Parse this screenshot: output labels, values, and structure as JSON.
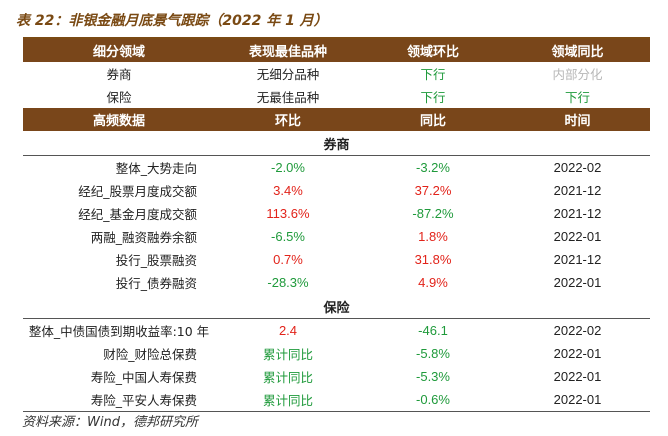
{
  "caption": "表 22：非银金融月底景气跟踪（2022 年 1 月）",
  "summary": {
    "headers": [
      "细分领域",
      "表现最佳品种",
      "领域环比",
      "领域同比"
    ],
    "rows": [
      {
        "domain": "券商",
        "best": "无细分品种",
        "mom": "下行",
        "yoy": "内部分化"
      },
      {
        "domain": "保险",
        "best": "无最佳品种",
        "mom": "下行",
        "yoy": "下行"
      }
    ]
  },
  "detail": {
    "headers": [
      "高频数据",
      "环比",
      "同比",
      "时间"
    ],
    "sections": [
      {
        "title": "券商",
        "rows": [
          {
            "name": "整体_大势走向",
            "mom": "-2.0%",
            "yoy": "-3.2%",
            "date": "2022-02"
          },
          {
            "name": "经纪_股票月度成交额",
            "mom": "3.4%",
            "yoy": "37.2%",
            "date": "2021-12"
          },
          {
            "name": "经纪_基金月度成交额",
            "mom": "113.6%",
            "yoy": "-87.2%",
            "date": "2021-12"
          },
          {
            "name": "两融_融资融券余额",
            "mom": "-6.5%",
            "yoy": "1.8%",
            "date": "2022-01"
          },
          {
            "name": "投行_股票融资",
            "mom": "0.7%",
            "yoy": "31.8%",
            "date": "2021-12"
          },
          {
            "name": "投行_债券融资",
            "mom": "-28.3%",
            "yoy": "4.9%",
            "date": "2022-01"
          }
        ]
      },
      {
        "title": "保险",
        "rows": [
          {
            "name": "整体_中债国债到期收益率:10 年",
            "mom": "2.4",
            "yoy": "-46.1",
            "date": "2022-02"
          },
          {
            "name": "财险_财险总保费",
            "mom": "累计同比",
            "yoy": "-5.8%",
            "date": "2022-01"
          },
          {
            "name": "寿险_中国人寿保费",
            "mom": "累计同比",
            "yoy": "-5.3%",
            "date": "2022-01"
          },
          {
            "name": "寿险_平安人寿保费",
            "mom": "累计同比",
            "yoy": "-0.6%",
            "date": "2022-01"
          }
        ]
      }
    ]
  },
  "colors": {
    "header_bg": "#79461a",
    "up_red": "#e2231a",
    "down_green": "#1f9a3b",
    "neutral_gray": "#b7b7b7"
  },
  "source": "资料来源：Wind，德邦研究所"
}
